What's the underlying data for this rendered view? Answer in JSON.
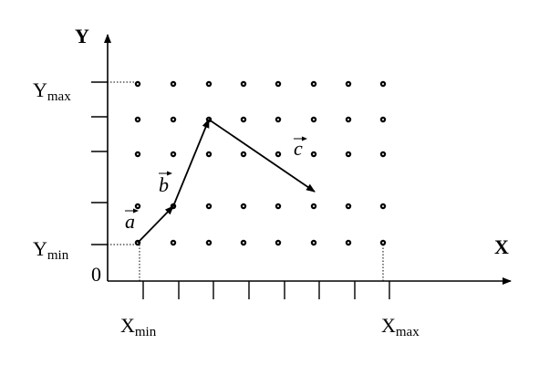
{
  "labels": {
    "y_axis": "Y",
    "x_axis": "X",
    "origin": "0",
    "y_max": {
      "base": "Y",
      "sub": "max"
    },
    "y_min": {
      "base": "Y",
      "sub": "min"
    },
    "x_min": {
      "base": "X",
      "sub": "min"
    },
    "x_max": {
      "base": "X",
      "sub": "max"
    }
  },
  "vectors": [
    {
      "label": "a"
    },
    {
      "label": "b"
    },
    {
      "label": "c"
    }
  ]
}
